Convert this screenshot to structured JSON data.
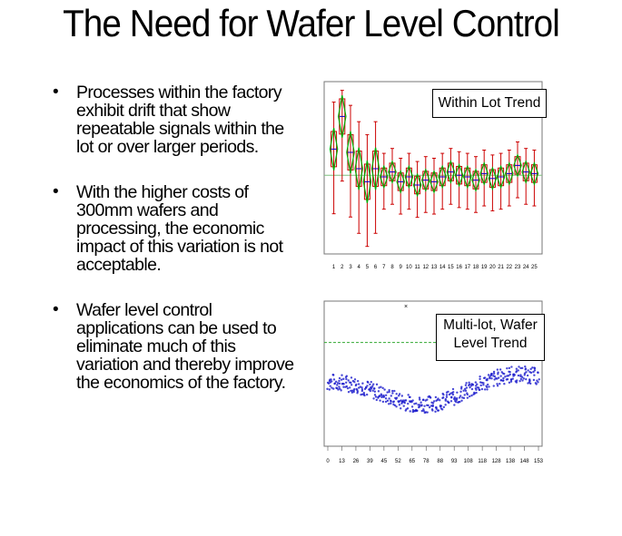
{
  "slide": {
    "title": "The Need for Wafer Level Control",
    "bullets": [
      "Processes within the factory exhibit drift that show repeatable signals within the lot or over larger periods.",
      "With the higher costs of 300mm wafers and processing, the economic impact of this variation is not acceptable.",
      "Wafer level control applications can be used to eliminate much of this variation and thereby improve the economics of the factory."
    ]
  },
  "chart_data": [
    {
      "type": "box",
      "legend_text": "Within Lot Trend",
      "categories": [
        "1",
        "2",
        "3",
        "4",
        "5",
        "6",
        "7",
        "8",
        "9",
        "10",
        "11",
        "12",
        "13",
        "14",
        "15",
        "16",
        "17",
        "18",
        "19",
        "20",
        "21",
        "22",
        "23",
        "24",
        "25"
      ],
      "medians": [
        0.62,
        0.82,
        0.6,
        0.5,
        0.42,
        0.5,
        0.45,
        0.48,
        0.42,
        0.45,
        0.4,
        0.43,
        0.42,
        0.45,
        0.48,
        0.46,
        0.45,
        0.43,
        0.47,
        0.44,
        0.45,
        0.47,
        0.52,
        0.48,
        0.47
      ],
      "ylim": [
        0,
        1
      ],
      "colors": {
        "box": "#cc0000",
        "diamond": "#00aa00",
        "whisker": "#cc0000",
        "mean": "#0000cc",
        "ref": "#7fbf7f"
      }
    },
    {
      "type": "scatter",
      "legend_text": "Multi-lot, Wafer Level Trend",
      "x_ticks": [
        "0",
        "13",
        "26",
        "39",
        "45",
        "52",
        "65",
        "78",
        "88",
        "93",
        "108",
        "118",
        "128",
        "138",
        "148",
        "153"
      ],
      "ylim": [
        0,
        1
      ],
      "colors": {
        "points": "#1a1acc",
        "ref": "#33aa33"
      }
    }
  ]
}
